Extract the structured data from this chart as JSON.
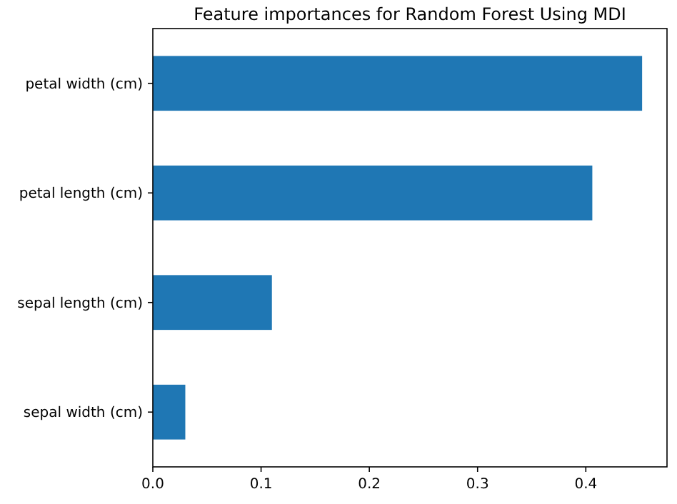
{
  "chart_data": {
    "type": "bar",
    "orientation": "horizontal",
    "title": "Feature importances for Random Forest Using MDI",
    "categories": [
      "petal width (cm)",
      "petal length (cm)",
      "sepal length (cm)",
      "sepal width (cm)"
    ],
    "values": [
      0.452,
      0.406,
      0.11,
      0.03
    ],
    "color": "#1f77b4",
    "xlim": [
      0,
      0.475
    ],
    "xticks": [
      {
        "value": 0,
        "label": "0.0"
      },
      0.1,
      0.2,
      0.3,
      0.4
    ]
  }
}
